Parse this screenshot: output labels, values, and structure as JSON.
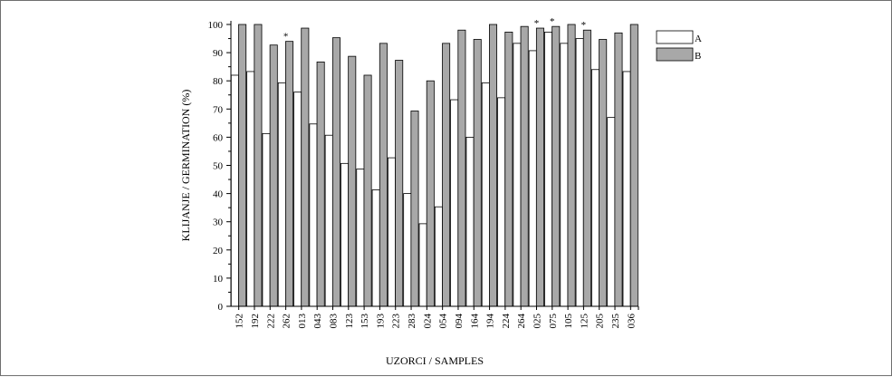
{
  "chart_data": {
    "type": "bar",
    "xlabel": "UZORCI / SAMPLES",
    "ylabel": "KLIJANJE / GERMINATION (%)",
    "ylim": [
      0,
      100
    ],
    "yticks": [
      0,
      10,
      20,
      30,
      40,
      50,
      60,
      70,
      80,
      90,
      100
    ],
    "categories": [
      "152",
      "192",
      "222",
      "262",
      "013",
      "043",
      "083",
      "123",
      "153",
      "193",
      "223",
      "283",
      "024",
      "054",
      "094",
      "164",
      "194",
      "224",
      "264",
      "025",
      "075",
      "105",
      "125",
      "205",
      "235",
      "036"
    ],
    "series": [
      {
        "name": "A",
        "color": "#ffffff",
        "values": [
          82,
          83.3,
          61.3,
          79.3,
          76,
          64.7,
          60.7,
          50.7,
          48.7,
          41.3,
          52.7,
          40,
          29.3,
          35.3,
          73.3,
          60,
          79.3,
          74,
          93.3,
          90.7,
          97.3,
          93.3,
          95,
          84,
          67,
          83.3
        ]
      },
      {
        "name": "B",
        "color": "#a8a8a8",
        "values": [
          100,
          100,
          92.7,
          94,
          98.7,
          86.7,
          95.3,
          88.7,
          82,
          93.3,
          87.3,
          69.3,
          80,
          93.3,
          98,
          94.7,
          100,
          97.3,
          99.3,
          98.7,
          99.3,
          100,
          98,
          94.7,
          97,
          100
        ]
      }
    ],
    "annotations": [
      {
        "category": "262",
        "text": "*"
      },
      {
        "category": "025",
        "text": "*"
      },
      {
        "category": "075",
        "text": "*"
      },
      {
        "category": "125",
        "text": "*"
      }
    ],
    "legend_position": "top-right",
    "grid": false
  }
}
